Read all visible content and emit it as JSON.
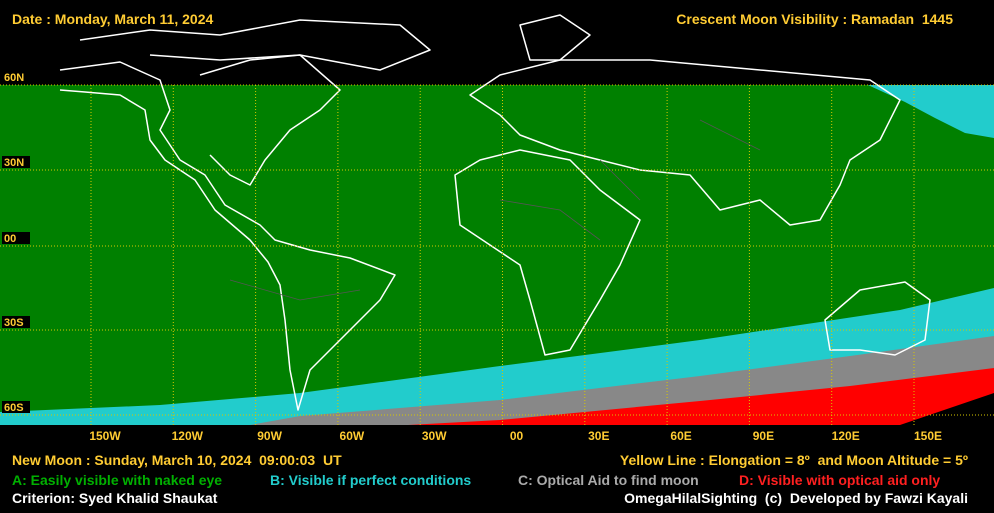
{
  "header": {
    "date": "Date : Monday, March 11, 2024",
    "title": "Crescent Moon Visibility : Ramadan  1445"
  },
  "map": {
    "latitude_labels": [
      "60N",
      "30N",
      "00",
      "30S",
      "60S"
    ],
    "longitude_labels": [
      "150W",
      "120W",
      "90W",
      "60W",
      "30W",
      "00",
      "30E",
      "60E",
      "90E",
      "120E",
      "150E"
    ]
  },
  "footer": {
    "new_moon": "New Moon : Sunday, March 10, 2024  09:00:03  UT",
    "yellow_line": "Yellow Line : Elongation = 8º  and Moon Altitude = 5º",
    "legend": [
      "A: Easily visible with naked eye",
      "B: Visible if perfect conditions",
      "C: Optical Aid to find moon",
      "D: Visible with optical aid only"
    ],
    "criterion": "Criterion: Syed Khalid Shaukat",
    "credit": "OmegaHilalSighting  (c)  Developed by Fawzi Kayali"
  }
}
